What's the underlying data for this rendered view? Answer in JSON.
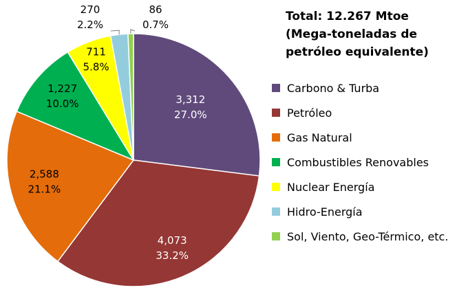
{
  "title": {
    "line1": "Total: 12.267 Mtoe",
    "line2": "(Mega-toneladas de",
    "line3": "petróleo equivalente)"
  },
  "chart_data": {
    "type": "pie",
    "start_angle_deg": 0,
    "direction": "clockwise",
    "legend_position": "right",
    "slices": [
      {
        "label": "Carbono & Turba",
        "value": 3312,
        "value_label": "3,312",
        "percent_label": "27.0%",
        "color": "#604A7B",
        "label_color": "#FFFFFF"
      },
      {
        "label": "Petróleo",
        "value": 4073,
        "value_label": "4,073",
        "percent_label": "33.2%",
        "color": "#953735",
        "label_color": "#FFFFFF"
      },
      {
        "label": "Gas Natural",
        "value": 2588,
        "value_label": "2,588",
        "percent_label": "21.1%",
        "color": "#E46C0A",
        "label_color": "#000000"
      },
      {
        "label": "Combustibles Renovables",
        "value": 1227,
        "value_label": "1,227",
        "percent_label": "10.0%",
        "color": "#00B050",
        "label_color": "#000000"
      },
      {
        "label": "Nuclear Energía",
        "value": 711,
        "value_label": "711",
        "percent_label": "5.8%",
        "color": "#FFFF00",
        "label_color": "#000000"
      },
      {
        "label": "Hidro-Energía",
        "value": 270,
        "value_label": "270",
        "percent_label": "2.2%",
        "color": "#93CDDD",
        "label_color": "#000000"
      },
      {
        "label": "Sol, Viento, Geo-Térmico, etc.",
        "value": 86,
        "value_label": "86",
        "percent_label": "0.7%",
        "color": "#92D050",
        "label_color": "#000000"
      }
    ]
  }
}
